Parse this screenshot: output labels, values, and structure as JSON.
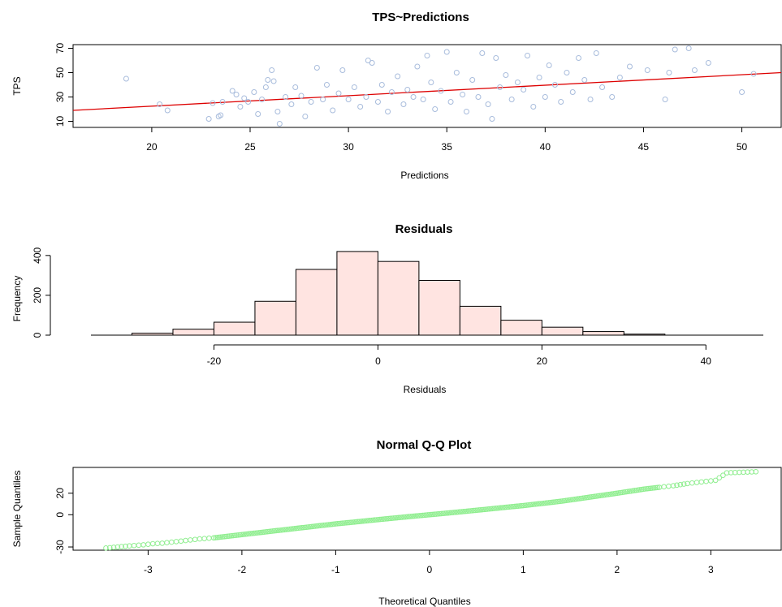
{
  "chart_data": [
    {
      "type": "scatter",
      "title": "TPS~Predictions",
      "xlabel": "Predictions",
      "ylabel": "TPS",
      "xlim": [
        16,
        52
      ],
      "ylim": [
        5,
        73
      ],
      "xticks": [
        20,
        25,
        30,
        35,
        40,
        45,
        50
      ],
      "yticks": [
        10,
        30,
        50,
        70
      ],
      "grid": false,
      "point_color": "#a8bcdc",
      "line_color": "#dd0000",
      "regression_line": {
        "x": [
          16,
          52
        ],
        "y": [
          19,
          50
        ]
      },
      "series": [
        {
          "points": [
            [
              18.7,
              45
            ],
            [
              20.4,
              24
            ],
            [
              20.8,
              19
            ],
            [
              22.9,
              12
            ],
            [
              23.1,
              25
            ],
            [
              23.4,
              14
            ],
            [
              23.5,
              15
            ],
            [
              23.6,
              26
            ],
            [
              24.1,
              35
            ],
            [
              24.3,
              32
            ],
            [
              24.5,
              22
            ],
            [
              24.7,
              29
            ],
            [
              24.9,
              26
            ],
            [
              25.2,
              34
            ],
            [
              25.4,
              16
            ],
            [
              25.6,
              28
            ],
            [
              25.8,
              38
            ],
            [
              25.9,
              44
            ],
            [
              26.1,
              52
            ],
            [
              26.2,
              43
            ],
            [
              26.4,
              18
            ],
            [
              26.5,
              8
            ],
            [
              26.8,
              30
            ],
            [
              27.1,
              24
            ],
            [
              27.3,
              38
            ],
            [
              27.6,
              31
            ],
            [
              27.8,
              14
            ],
            [
              28.1,
              26
            ],
            [
              28.4,
              54
            ],
            [
              28.7,
              28
            ],
            [
              28.9,
              40
            ],
            [
              29.2,
              19
            ],
            [
              29.5,
              33
            ],
            [
              29.7,
              52
            ],
            [
              30.0,
              28
            ],
            [
              30.3,
              38
            ],
            [
              30.6,
              22
            ],
            [
              30.9,
              30
            ],
            [
              31.0,
              60
            ],
            [
              31.2,
              58
            ],
            [
              31.5,
              26
            ],
            [
              31.7,
              40
            ],
            [
              32.0,
              18
            ],
            [
              32.2,
              34
            ],
            [
              32.5,
              47
            ],
            [
              32.8,
              24
            ],
            [
              33.0,
              36
            ],
            [
              33.3,
              30
            ],
            [
              33.5,
              55
            ],
            [
              33.8,
              28
            ],
            [
              34.0,
              64
            ],
            [
              34.2,
              42
            ],
            [
              34.4,
              20
            ],
            [
              34.7,
              35
            ],
            [
              35.0,
              67
            ],
            [
              35.2,
              26
            ],
            [
              35.5,
              50
            ],
            [
              35.8,
              32
            ],
            [
              36.0,
              18
            ],
            [
              36.3,
              44
            ],
            [
              36.6,
              30
            ],
            [
              36.8,
              66
            ],
            [
              37.1,
              24
            ],
            [
              37.3,
              12
            ],
            [
              37.5,
              62
            ],
            [
              37.7,
              38
            ],
            [
              38.0,
              48
            ],
            [
              38.3,
              28
            ],
            [
              38.6,
              42
            ],
            [
              38.9,
              36
            ],
            [
              39.1,
              64
            ],
            [
              39.4,
              22
            ],
            [
              39.7,
              46
            ],
            [
              40.0,
              30
            ],
            [
              40.2,
              56
            ],
            [
              40.5,
              40
            ],
            [
              40.8,
              26
            ],
            [
              41.1,
              50
            ],
            [
              41.4,
              34
            ],
            [
              41.7,
              62
            ],
            [
              42.0,
              44
            ],
            [
              42.3,
              28
            ],
            [
              42.6,
              66
            ],
            [
              42.9,
              38
            ],
            [
              43.4,
              30
            ],
            [
              43.8,
              46
            ],
            [
              44.3,
              55
            ],
            [
              45.2,
              52
            ],
            [
              46.1,
              28
            ],
            [
              46.3,
              50
            ],
            [
              46.6,
              69
            ],
            [
              47.3,
              70
            ],
            [
              47.6,
              52
            ],
            [
              48.3,
              58
            ],
            [
              50.0,
              34
            ],
            [
              50.6,
              49
            ]
          ]
        }
      ]
    },
    {
      "type": "bar",
      "title": "Residuals",
      "xlabel": "Residuals",
      "ylabel": "Frequency",
      "xlim": [
        -35,
        47
      ],
      "ylim": [
        0,
        440
      ],
      "xticks": [
        -20,
        0,
        20,
        40
      ],
      "yticks": [
        0,
        200,
        400
      ],
      "grid": false,
      "bar_color": "#ffe4e1",
      "bin_edges": [
        -30,
        -25,
        -20,
        -15,
        -10,
        -5,
        0,
        5,
        10,
        15,
        20,
        25,
        30,
        35
      ],
      "values": [
        10,
        30,
        65,
        170,
        330,
        420,
        370,
        275,
        145,
        75,
        40,
        18,
        5
      ]
    },
    {
      "type": "scatter",
      "title": "Normal Q-Q Plot",
      "xlabel": "Theoretical Quantiles",
      "ylabel": "Sample Quantiles",
      "xlim": [
        -3.8,
        3.75
      ],
      "ylim": [
        -33,
        44
      ],
      "xticks": [
        -3,
        -2,
        -1,
        0,
        1,
        2,
        3
      ],
      "yticks": [
        -30,
        0,
        20
      ],
      "grid": false,
      "point_color": "#90ee90",
      "series": [
        {
          "points": [
            [
              -3.45,
              -31
            ],
            [
              -3.2,
              -29
            ],
            [
              -3.05,
              -28
            ],
            [
              -2.95,
              -27
            ],
            [
              -2.85,
              -26.5
            ],
            [
              -2.75,
              -25.5
            ],
            [
              -2.65,
              -24.5
            ],
            [
              -2.55,
              -23.5
            ],
            [
              -2.45,
              -22.5
            ],
            [
              -2.3,
              -21.5
            ],
            [
              -2.15,
              -20
            ],
            [
              -2.0,
              -18.5
            ],
            [
              -1.8,
              -16.5
            ],
            [
              -1.6,
              -14.5
            ],
            [
              -1.4,
              -12.5
            ],
            [
              -1.2,
              -10.5
            ],
            [
              -1.0,
              -8.5
            ],
            [
              -0.8,
              -6.8
            ],
            [
              -0.6,
              -5
            ],
            [
              -0.4,
              -3.3
            ],
            [
              -0.2,
              -1.6
            ],
            [
              0.0,
              0
            ],
            [
              0.2,
              1.6
            ],
            [
              0.4,
              3.3
            ],
            [
              0.6,
              5
            ],
            [
              0.8,
              6.8
            ],
            [
              1.0,
              8.5
            ],
            [
              1.2,
              10.5
            ],
            [
              1.4,
              12.5
            ],
            [
              1.6,
              15
            ],
            [
              1.8,
              17.5
            ],
            [
              2.0,
              20
            ],
            [
              2.15,
              22
            ],
            [
              2.3,
              24
            ],
            [
              2.45,
              25.5
            ],
            [
              2.6,
              27
            ],
            [
              2.75,
              29
            ],
            [
              2.9,
              30.5
            ],
            [
              3.05,
              32
            ],
            [
              3.17,
              39
            ],
            [
              3.48,
              40
            ]
          ]
        }
      ]
    }
  ]
}
